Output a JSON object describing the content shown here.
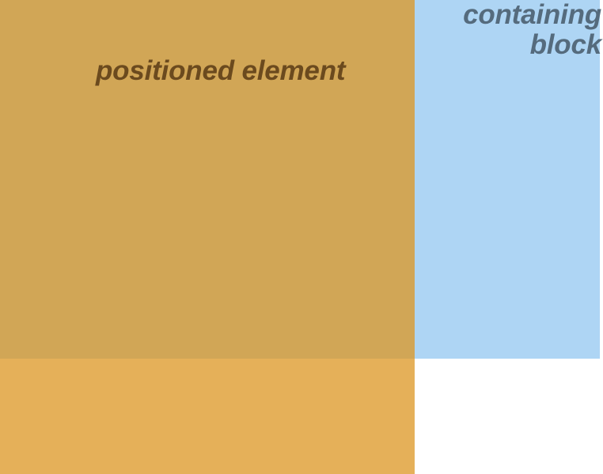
{
  "diagram": {
    "containing_block": {
      "label": "containing block",
      "fill_color": "#aed5f4",
      "label_color": "#556b7d"
    },
    "positioned_element": {
      "label": "positioned element",
      "fill_color": "#dc9522",
      "label_color": "#6b4a1e"
    },
    "background_color": "#ffffff"
  }
}
